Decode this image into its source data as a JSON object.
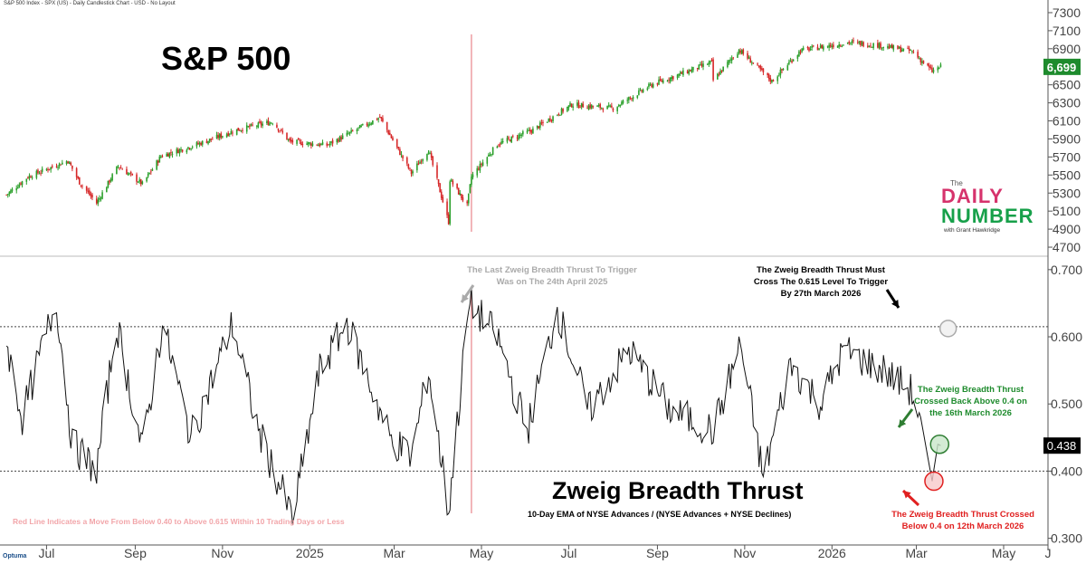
{
  "header": {
    "text": "S&P 500 Index - SPX (US) - Daily Candlestick Chart - USD - No Layout"
  },
  "brand": {
    "title_line1": "The",
    "title_line2": "DAILY",
    "title_line3": "NUMBER",
    "byline": "with Grant Hawkridge",
    "footer": "Optuma"
  },
  "colors": {
    "up": "#2ca02c",
    "down": "#d62728",
    "last_price_bg": "#1e8b2d",
    "red_line": "#e8858b",
    "grey": "#aaaaaa"
  },
  "chart_data": [
    {
      "type": "candlestick",
      "title": "S&P 500",
      "y_ticks": [
        4700,
        4900,
        5100,
        5300,
        5500,
        5700,
        5900,
        6100,
        6300,
        6500,
        6700,
        6900,
        7100,
        7300
      ],
      "ylim": [
        4600,
        7380
      ],
      "last_value": 6699,
      "last_value_label": "6,699",
      "series": [
        {
          "name": "SPX daily close (approx)",
          "points": [
            [
              "2024-06-03",
              5280
            ],
            [
              "2024-06-18",
              5480
            ],
            [
              "2024-07-16",
              5660
            ],
            [
              "2024-07-24",
              5420
            ],
            [
              "2024-08-05",
              5190
            ],
            [
              "2024-08-20",
              5600
            ],
            [
              "2024-09-06",
              5400
            ],
            [
              "2024-09-19",
              5710
            ],
            [
              "2024-10-18",
              5860
            ],
            [
              "2024-11-11",
              6000
            ],
            [
              "2024-12-06",
              6090
            ],
            [
              "2024-12-18",
              5870
            ],
            [
              "2025-01-13",
              5830
            ],
            [
              "2025-02-19",
              6140
            ],
            [
              "2025-03-13",
              5520
            ],
            [
              "2025-03-25",
              5780
            ],
            [
              "2025-04-08",
              4980
            ],
            [
              "2025-04-09",
              5450
            ],
            [
              "2025-04-21",
              5160
            ],
            [
              "2025-04-24",
              5480
            ],
            [
              "2025-05-12",
              5840
            ],
            [
              "2025-06-06",
              6000
            ],
            [
              "2025-07-03",
              6280
            ],
            [
              "2025-08-01",
              6240
            ],
            [
              "2025-08-28",
              6500
            ],
            [
              "2025-10-09",
              6750
            ],
            [
              "2025-10-10",
              6550
            ],
            [
              "2025-10-28",
              6890
            ],
            [
              "2025-11-20",
              6540
            ],
            [
              "2025-12-10",
              6880
            ],
            [
              "2026-01-13",
              6970
            ],
            [
              "2026-02-02",
              6940
            ],
            [
              "2026-02-26",
              6870
            ],
            [
              "2026-03-12",
              6650
            ],
            [
              "2026-03-18",
              6699
            ]
          ]
        }
      ],
      "annotations": {
        "red_line_date": "2025-04-24"
      }
    },
    {
      "type": "line",
      "title": "Zweig Breadth Thrust",
      "subtitle": "10-Day EMA of NYSE Advances / (NYSE Advances + NYSE Declines)",
      "y_ticks": [
        0.3,
        0.4,
        0.5,
        0.6,
        0.7
      ],
      "y_tick_labels": [
        "0.300",
        "0.400",
        "0.500",
        "0.600",
        "0.700"
      ],
      "ylim": [
        0.29,
        0.72
      ],
      "thresholds": [
        0.4,
        0.615
      ],
      "last_value": 0.438,
      "last_value_label": "0.438",
      "series": [
        {
          "name": "Zweig Breadth Thrust",
          "points": [
            [
              "2024-06-03",
              0.59
            ],
            [
              "2024-06-14",
              0.48
            ],
            [
              "2024-07-03",
              0.62
            ],
            [
              "2024-07-08",
              0.65
            ],
            [
              "2024-07-19",
              0.44
            ],
            [
              "2024-08-05",
              0.4
            ],
            [
              "2024-08-19",
              0.62
            ],
            [
              "2024-09-06",
              0.43
            ],
            [
              "2024-09-20",
              0.62
            ],
            [
              "2024-10-10",
              0.45
            ],
            [
              "2024-11-08",
              0.62
            ],
            [
              "2024-11-26",
              0.46
            ],
            [
              "2024-12-20",
              0.33
            ],
            [
              "2025-01-08",
              0.55
            ],
            [
              "2025-01-27",
              0.62
            ],
            [
              "2025-02-26",
              0.45
            ],
            [
              "2025-03-13",
              0.42
            ],
            [
              "2025-03-25",
              0.55
            ],
            [
              "2025-04-08",
              0.34
            ],
            [
              "2025-04-22",
              0.64
            ],
            [
              "2025-04-24",
              0.648
            ],
            [
              "2025-05-12",
              0.6
            ],
            [
              "2025-06-02",
              0.46
            ],
            [
              "2025-06-23",
              0.64
            ],
            [
              "2025-07-15",
              0.49
            ],
            [
              "2025-08-12",
              0.58
            ],
            [
              "2025-09-10",
              0.49
            ],
            [
              "2025-10-10",
              0.46
            ],
            [
              "2025-10-29",
              0.59
            ],
            [
              "2025-11-14",
              0.39
            ],
            [
              "2025-12-03",
              0.56
            ],
            [
              "2025-12-24",
              0.5
            ],
            [
              "2026-01-09",
              0.58
            ],
            [
              "2026-02-06",
              0.55
            ],
            [
              "2026-02-25",
              0.52
            ],
            [
              "2026-03-04",
              0.48
            ],
            [
              "2026-03-12",
              0.385
            ],
            [
              "2026-03-16",
              0.44
            ],
            [
              "2026-03-18",
              0.438
            ]
          ]
        }
      ],
      "annotations": {
        "last_thrust": {
          "text": "The Last Zweig Breadth Thrust To Trigger Was on The 24th April 2025",
          "date": "2025-04-24"
        },
        "target": {
          "text": "The Zweig Breadth Thrust Must Cross The 0.615 Level To Trigger By 27th March 2026",
          "date": "2026-03-27",
          "value": 0.615
        },
        "crossed_above": {
          "text": "The Zweig Breadth Thrust Crossed Back Above 0.4 on the 16th March 2026",
          "date": "2026-03-16",
          "value": 0.44
        },
        "crossed_below": {
          "text": "The Zweig Breadth Thrust Crossed Below 0.4 on 12th March 2026",
          "date": "2026-03-12",
          "value": 0.385
        },
        "red_line_note": "Red Line Indicates a Move From Below 0.40 to Above 0.615 Within 10 Trading Days or Less"
      }
    }
  ],
  "x_axis": {
    "ticks": [
      "Jul",
      "Sep",
      "Nov",
      "2025",
      "Mar",
      "May",
      "Jul",
      "Sep",
      "Nov",
      "2026",
      "Mar",
      "May",
      "J"
    ],
    "tick_dates": [
      "2024-07-01",
      "2024-09-01",
      "2024-11-01",
      "2025-01-01",
      "2025-03-01",
      "2025-05-01",
      "2025-07-01",
      "2025-09-01",
      "2025-11-01",
      "2026-01-01",
      "2026-03-01",
      "2026-05-01",
      "2026-06-01"
    ],
    "start": "2024-06-01",
    "end": "2026-06-01"
  }
}
